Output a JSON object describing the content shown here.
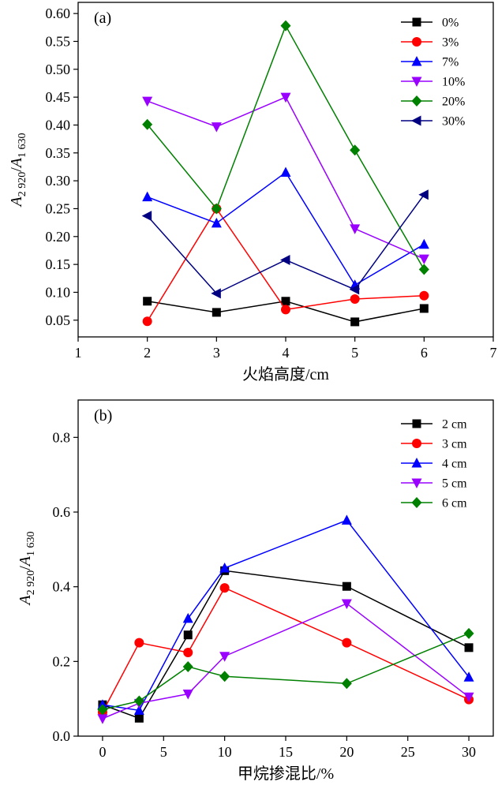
{
  "chart_data": [
    {
      "type": "line",
      "panel_label": "(a)",
      "xlabel": "火焰高度/cm",
      "ylabel_main": "A",
      "ylabel_sub1": "2 920",
      "ylabel_slash": "/",
      "ylabel_main2": "A",
      "ylabel_sub2": "1 630",
      "xlim": [
        1,
        7
      ],
      "ylim": [
        0.02,
        0.62
      ],
      "xticks": [
        1,
        2,
        3,
        4,
        5,
        6,
        7
      ],
      "yticks": [
        "0.05",
        "0.10",
        "0.15",
        "0.20",
        "0.25",
        "0.30",
        "0.35",
        "0.40",
        "0.45",
        "0.50",
        "0.55",
        "0.60"
      ],
      "legend_position": "top-right",
      "grid": false,
      "x": [
        2,
        3,
        4,
        5,
        6
      ],
      "series": [
        {
          "name": "0%",
          "color": "#000000",
          "marker": "square",
          "values": [
            0.084,
            0.064,
            0.084,
            0.047,
            0.071
          ]
        },
        {
          "name": "3%",
          "color": "#ff0000",
          "marker": "circle",
          "values": [
            0.048,
            0.25,
            0.069,
            0.088,
            0.094
          ]
        },
        {
          "name": "7%",
          "color": "#0000ff",
          "marker": "triangle-up",
          "values": [
            0.271,
            0.224,
            0.315,
            0.113,
            0.186
          ]
        },
        {
          "name": "10%",
          "color": "#9900ff",
          "marker": "triangle-down",
          "values": [
            0.443,
            0.397,
            0.45,
            0.214,
            0.16
          ]
        },
        {
          "name": "20%",
          "color": "#008000",
          "marker": "diamond",
          "values": [
            0.401,
            0.25,
            0.578,
            0.355,
            0.141
          ]
        },
        {
          "name": "30%",
          "color": "#000080",
          "marker": "triangle-left",
          "values": [
            0.237,
            0.098,
            0.158,
            0.105,
            0.275
          ]
        }
      ]
    },
    {
      "type": "line",
      "panel_label": "(b)",
      "xlabel": "甲烷掺混比/%",
      "ylabel_main": "A",
      "ylabel_sub1": "2 920",
      "ylabel_slash": "/",
      "ylabel_main2": "A",
      "ylabel_sub2": "1 630",
      "xlim": [
        -2,
        32
      ],
      "ylim": [
        0,
        0.9
      ],
      "xticks": [
        0,
        5,
        10,
        15,
        20,
        25,
        30
      ],
      "yticks": [
        "0.0",
        "0.2",
        "0.4",
        "0.6",
        "0.8"
      ],
      "legend_position": "top-right",
      "grid": false,
      "x": [
        0,
        3,
        7,
        10,
        20,
        30
      ],
      "series": [
        {
          "name": "2 cm",
          "color": "#000000",
          "marker": "square",
          "values": [
            0.084,
            0.048,
            0.271,
            0.443,
            0.401,
            0.237
          ]
        },
        {
          "name": "3 cm",
          "color": "#ff0000",
          "marker": "circle",
          "values": [
            0.064,
            0.25,
            0.224,
            0.397,
            0.25,
            0.098
          ]
        },
        {
          "name": "4 cm",
          "color": "#0000ff",
          "marker": "triangle-up",
          "values": [
            0.084,
            0.069,
            0.315,
            0.45,
            0.578,
            0.158
          ]
        },
        {
          "name": "5 cm",
          "color": "#9900ff",
          "marker": "triangle-down",
          "values": [
            0.047,
            0.088,
            0.113,
            0.214,
            0.355,
            0.105
          ]
        },
        {
          "name": "6 cm",
          "color": "#008000",
          "marker": "diamond",
          "values": [
            0.071,
            0.094,
            0.186,
            0.16,
            0.141,
            0.275
          ]
        }
      ]
    }
  ]
}
